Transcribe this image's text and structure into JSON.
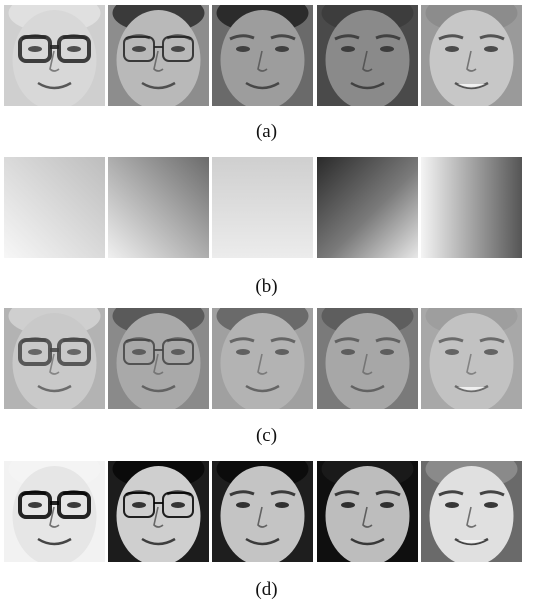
{
  "figure": {
    "panels": [
      {
        "label": "(a)",
        "content": "faces-original"
      },
      {
        "label": "(b)",
        "content": "illumination-gradients"
      },
      {
        "label": "(c)",
        "content": "faces-illumination-normalized"
      },
      {
        "label": "(d)",
        "content": "faces-contrast-enhanced"
      }
    ]
  },
  "colors": {
    "caption_text": "#111111",
    "background": "#ffffff"
  }
}
